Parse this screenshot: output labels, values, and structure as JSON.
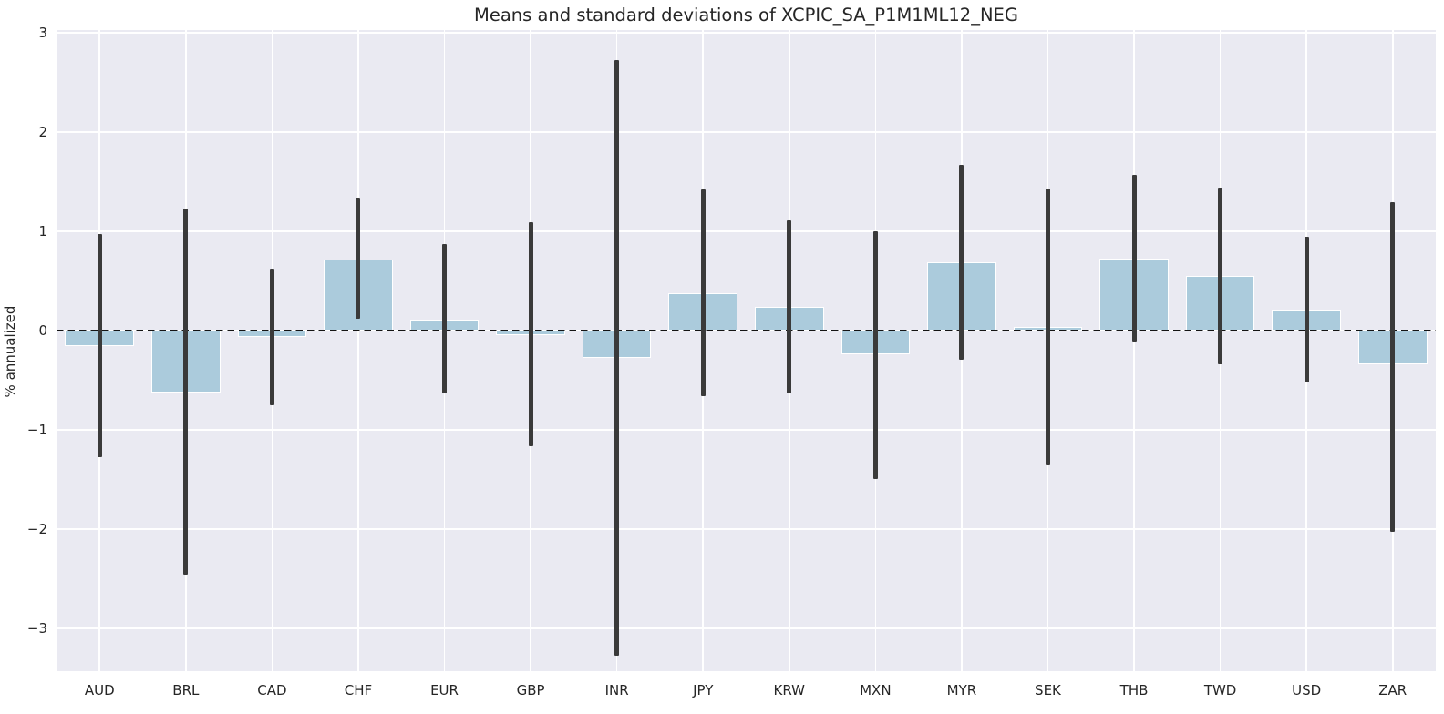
{
  "title": "Means and standard deviations of XCPIC_SA_P1M1ML12_NEG",
  "ylabel": "% annualized",
  "colors": {
    "figure_background": "#ffffff",
    "plot_background": "#eaeaf2",
    "gridline": "#ffffff",
    "bar_fill": "#abcbdc",
    "bar_edge": "#ffffff",
    "error_bar": "#3a3a3a",
    "zero_line": "#141414",
    "text": "#262626"
  },
  "chart_data": {
    "type": "bar",
    "title": "Means and standard deviations of XCPIC_SA_P1M1ML12_NEG",
    "xlabel": "",
    "ylabel": "% annualized",
    "categories": [
      "AUD",
      "BRL",
      "CAD",
      "CHF",
      "EUR",
      "GBP",
      "INR",
      "JPY",
      "KRW",
      "MXN",
      "MYR",
      "SEK",
      "THB",
      "TWD",
      "USD",
      "ZAR"
    ],
    "series": [
      {
        "name": "mean",
        "values": [
          -0.15,
          -0.62,
          -0.06,
          0.72,
          0.11,
          -0.04,
          -0.27,
          0.38,
          0.24,
          -0.24,
          0.69,
          0.04,
          0.73,
          0.55,
          0.21,
          -0.34
        ]
      },
      {
        "name": "error_upper",
        "values": [
          0.97,
          1.23,
          0.63,
          1.34,
          0.87,
          1.09,
          2.73,
          1.42,
          1.11,
          1.0,
          1.67,
          1.43,
          1.57,
          1.44,
          0.95,
          1.3
        ]
      },
      {
        "name": "error_lower",
        "values": [
          -1.27,
          -2.46,
          -0.75,
          0.12,
          -0.63,
          -1.16,
          -3.27,
          -0.66,
          -0.63,
          -1.49,
          -0.29,
          -1.36,
          -0.11,
          -0.34,
          -0.52,
          -2.03
        ]
      }
    ],
    "yticks": [
      3,
      2,
      1,
      0,
      -1,
      -2,
      -3
    ],
    "ylim": [
      -3.43,
      3.03
    ],
    "bar_rel_width": 0.8,
    "grid": true,
    "zero_line_style": "dashed",
    "legend": false
  }
}
